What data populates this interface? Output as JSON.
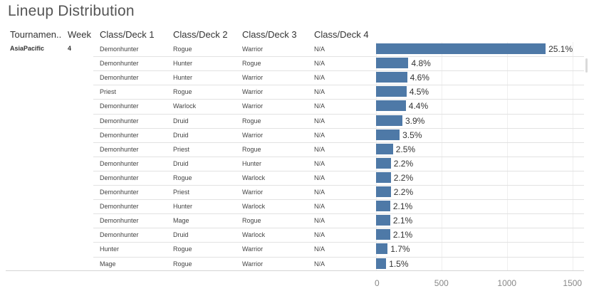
{
  "title": "Lineup Distribution",
  "headers": {
    "tournament": "Tournamen..",
    "week": "Week",
    "deck1": "Class/Deck 1",
    "deck2": "Class/Deck 2",
    "deck3": "Class/Deck 3",
    "deck4": "Class/Deck 4"
  },
  "tournament": "AsiaPacific",
  "week": "4",
  "chart_data": {
    "type": "bar",
    "orientation": "horizontal",
    "xlim": [
      0,
      1500
    ],
    "x_ticks": [
      "0",
      "500",
      "1000",
      "1500"
    ],
    "grid": true,
    "rows": [
      {
        "deck1": "Demonhunter",
        "deck2": "Rogue",
        "deck3": "Warrior",
        "deck4": "N/A",
        "count": 1294,
        "label": "25.1%"
      },
      {
        "deck1": "Demonhunter",
        "deck2": "Hunter",
        "deck3": "Rogue",
        "deck4": "N/A",
        "count": 247,
        "label": "4.8%"
      },
      {
        "deck1": "Demonhunter",
        "deck2": "Hunter",
        "deck3": "Warrior",
        "deck4": "N/A",
        "count": 237,
        "label": "4.6%"
      },
      {
        "deck1": "Priest",
        "deck2": "Rogue",
        "deck3": "Warrior",
        "deck4": "N/A",
        "count": 232,
        "label": "4.5%"
      },
      {
        "deck1": "Demonhunter",
        "deck2": "Warlock",
        "deck3": "Warrior",
        "deck4": "N/A",
        "count": 227,
        "label": "4.4%"
      },
      {
        "deck1": "Demonhunter",
        "deck2": "Druid",
        "deck3": "Rogue",
        "deck4": "N/A",
        "count": 201,
        "label": "3.9%"
      },
      {
        "deck1": "Demonhunter",
        "deck2": "Druid",
        "deck3": "Warrior",
        "deck4": "N/A",
        "count": 180,
        "label": "3.5%"
      },
      {
        "deck1": "Demonhunter",
        "deck2": "Priest",
        "deck3": "Rogue",
        "deck4": "N/A",
        "count": 129,
        "label": "2.5%"
      },
      {
        "deck1": "Demonhunter",
        "deck2": "Druid",
        "deck3": "Hunter",
        "deck4": "N/A",
        "count": 113,
        "label": "2.2%"
      },
      {
        "deck1": "Demonhunter",
        "deck2": "Rogue",
        "deck3": "Warlock",
        "deck4": "N/A",
        "count": 113,
        "label": "2.2%"
      },
      {
        "deck1": "Demonhunter",
        "deck2": "Priest",
        "deck3": "Warrior",
        "deck4": "N/A",
        "count": 113,
        "label": "2.2%"
      },
      {
        "deck1": "Demonhunter",
        "deck2": "Hunter",
        "deck3": "Warlock",
        "deck4": "N/A",
        "count": 108,
        "label": "2.1%"
      },
      {
        "deck1": "Demonhunter",
        "deck2": "Mage",
        "deck3": "Rogue",
        "deck4": "N/A",
        "count": 108,
        "label": "2.1%"
      },
      {
        "deck1": "Demonhunter",
        "deck2": "Druid",
        "deck3": "Warlock",
        "deck4": "N/A",
        "count": 108,
        "label": "2.1%"
      },
      {
        "deck1": "Hunter",
        "deck2": "Rogue",
        "deck3": "Warrior",
        "deck4": "N/A",
        "count": 88,
        "label": "1.7%"
      },
      {
        "deck1": "Mage",
        "deck2": "Rogue",
        "deck3": "Warrior",
        "deck4": "N/A",
        "count": 77,
        "label": "1.5%"
      }
    ]
  },
  "colors": {
    "bar": "#4e79a7"
  }
}
